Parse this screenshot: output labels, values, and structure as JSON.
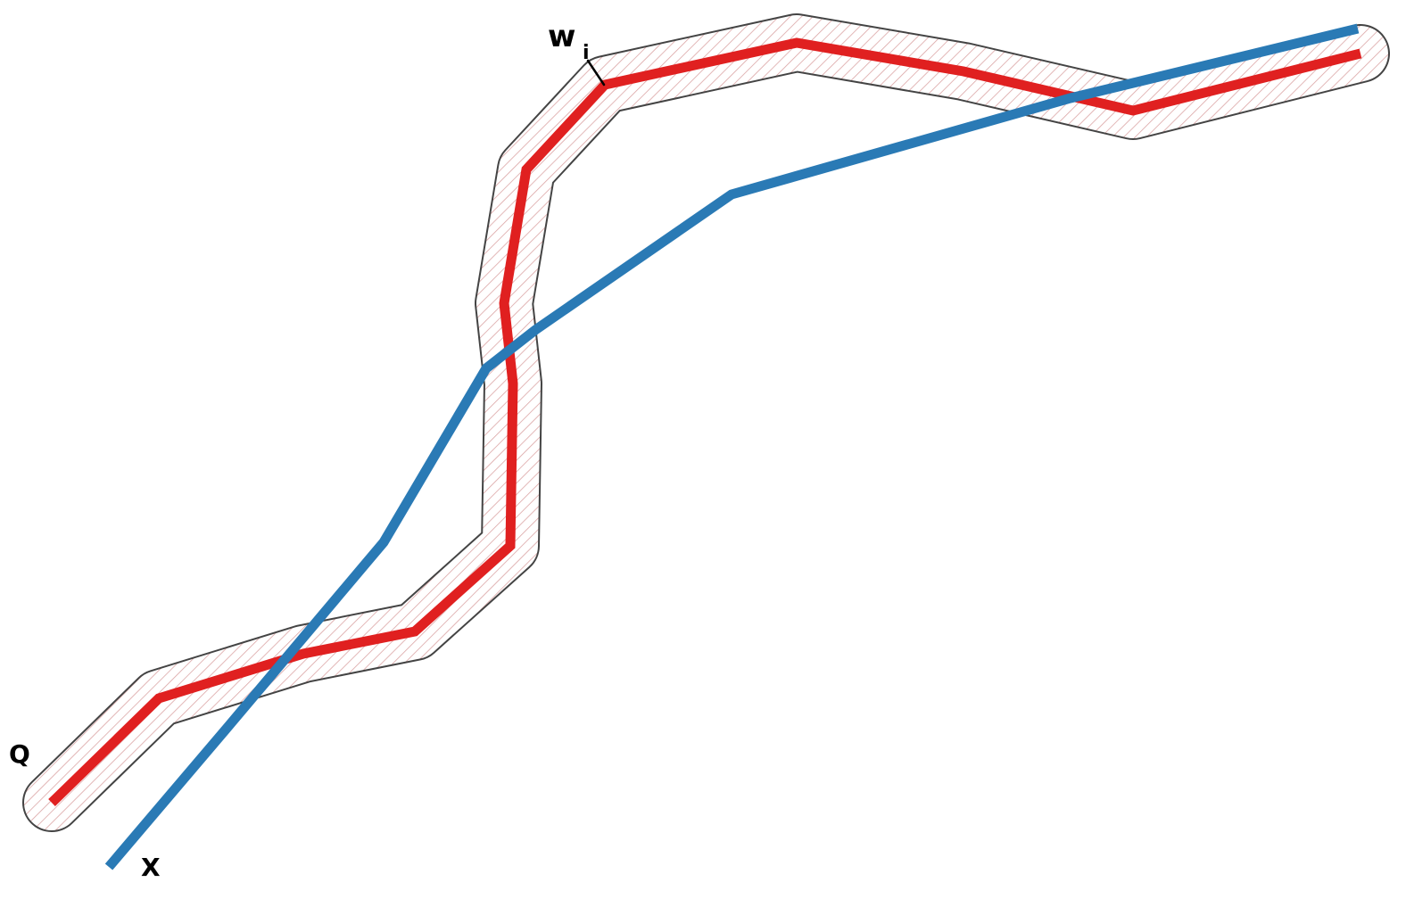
{
  "labels": {
    "width": {
      "main": "w",
      "subscript": "i"
    },
    "query": "Q",
    "trajectory": "X"
  }
}
